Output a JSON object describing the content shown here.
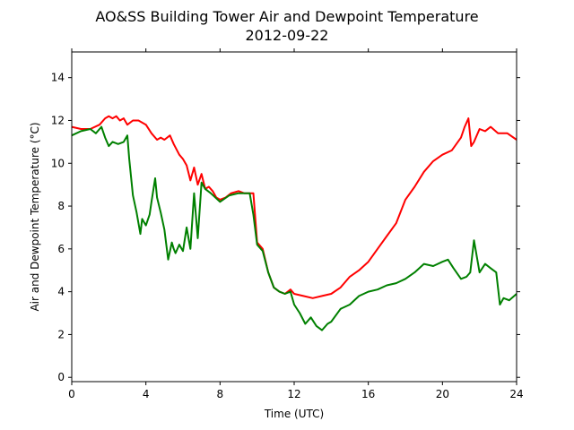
{
  "chart_data": {
    "type": "line",
    "title": "AO&SS Building Tower Air and Dewpoint Temperature",
    "subtitle": "2012-09-22",
    "xlabel": "Time (UTC)",
    "ylabel": "Air and Dewpoint Temperature (°C)",
    "xlim": [
      0,
      24
    ],
    "ylim": [
      -0.2,
      15.2
    ],
    "xticks": [
      0,
      4,
      8,
      12,
      16,
      20,
      24
    ],
    "yticks": [
      0,
      2,
      4,
      6,
      8,
      10,
      12,
      14
    ],
    "grid": false,
    "legend": "none",
    "series": [
      {
        "color": "#ff0000",
        "x": [
          0,
          0.5,
          1.0,
          1.5,
          1.8,
          2.0,
          2.2,
          2.4,
          2.6,
          2.8,
          3.0,
          3.3,
          3.6,
          4.0,
          4.3,
          4.6,
          4.8,
          5.0,
          5.3,
          5.5,
          5.8,
          6.0,
          6.2,
          6.4,
          6.6,
          6.8,
          7.0,
          7.2,
          7.4,
          7.6,
          7.8,
          8.0,
          8.3,
          8.6,
          9.0,
          9.3,
          9.6,
          9.8,
          10.0,
          10.3,
          10.6,
          10.9,
          11.2,
          11.5,
          11.8,
          12.0,
          12.5,
          13.0,
          13.5,
          14.0,
          14.5,
          15.0,
          15.5,
          16.0,
          16.5,
          17.0,
          17.5,
          18.0,
          18.5,
          19.0,
          19.5,
          20.0,
          20.5,
          21.0,
          21.2,
          21.4,
          21.55,
          21.7,
          22.0,
          22.3,
          22.6,
          23.0,
          23.5,
          24.0
        ],
        "y": [
          11.7,
          11.6,
          11.6,
          11.8,
          12.1,
          12.2,
          12.1,
          12.2,
          12.0,
          12.1,
          11.8,
          12.0,
          12.0,
          11.8,
          11.4,
          11.1,
          11.2,
          11.1,
          11.3,
          10.9,
          10.4,
          10.2,
          9.9,
          9.2,
          9.8,
          9.0,
          9.5,
          8.8,
          8.9,
          8.7,
          8.4,
          8.3,
          8.4,
          8.6,
          8.7,
          8.6,
          8.6,
          8.6,
          6.3,
          6.0,
          4.9,
          4.2,
          4.0,
          3.9,
          4.1,
          3.9,
          3.8,
          3.7,
          3.8,
          3.9,
          4.2,
          4.7,
          5.0,
          5.4,
          6.0,
          6.6,
          7.2,
          8.3,
          8.9,
          9.6,
          10.1,
          10.4,
          10.6,
          11.2,
          11.7,
          12.1,
          10.8,
          11.0,
          11.6,
          11.5,
          11.7,
          11.4,
          11.4,
          11.1
        ]
      },
      {
        "color": "#008000",
        "x": [
          0,
          0.5,
          1.0,
          1.3,
          1.6,
          1.8,
          2.0,
          2.2,
          2.5,
          2.8,
          3.0,
          3.1,
          3.3,
          3.5,
          3.7,
          3.8,
          4.0,
          4.2,
          4.3,
          4.5,
          4.6,
          4.8,
          5.0,
          5.2,
          5.4,
          5.5,
          5.6,
          5.8,
          6.0,
          6.2,
          6.4,
          6.6,
          6.8,
          7.0,
          7.2,
          7.5,
          8.0,
          8.5,
          9.0,
          9.6,
          9.8,
          10.0,
          10.3,
          10.6,
          10.9,
          11.2,
          11.5,
          11.8,
          12.0,
          12.3,
          12.6,
          12.9,
          13.2,
          13.5,
          13.8,
          14.0,
          14.5,
          15.0,
          15.5,
          16.0,
          16.5,
          17.0,
          17.5,
          18.0,
          18.5,
          19.0,
          19.5,
          20.0,
          20.3,
          20.6,
          21.0,
          21.3,
          21.5,
          21.7,
          22.0,
          22.3,
          22.6,
          22.9,
          23.1,
          23.3,
          23.6,
          24.0
        ],
        "y": [
          11.3,
          11.5,
          11.6,
          11.4,
          11.7,
          11.2,
          10.8,
          11.0,
          10.9,
          11.0,
          11.3,
          10.2,
          8.5,
          7.7,
          6.7,
          7.4,
          7.1,
          7.6,
          8.2,
          9.3,
          8.4,
          7.7,
          6.9,
          5.5,
          6.3,
          6.0,
          5.8,
          6.2,
          5.9,
          7.0,
          6.0,
          8.6,
          6.5,
          9.1,
          8.8,
          8.6,
          8.2,
          8.5,
          8.6,
          8.6,
          7.6,
          6.2,
          5.9,
          4.9,
          4.2,
          4.0,
          3.9,
          4.0,
          3.4,
          3.0,
          2.5,
          2.8,
          2.4,
          2.2,
          2.5,
          2.6,
          3.2,
          3.4,
          3.8,
          4.0,
          4.1,
          4.3,
          4.4,
          4.6,
          4.9,
          5.3,
          5.2,
          5.4,
          5.5,
          5.1,
          4.6,
          4.7,
          4.9,
          6.4,
          4.9,
          5.3,
          5.1,
          4.9,
          3.4,
          3.7,
          3.6,
          3.9
        ]
      }
    ]
  }
}
